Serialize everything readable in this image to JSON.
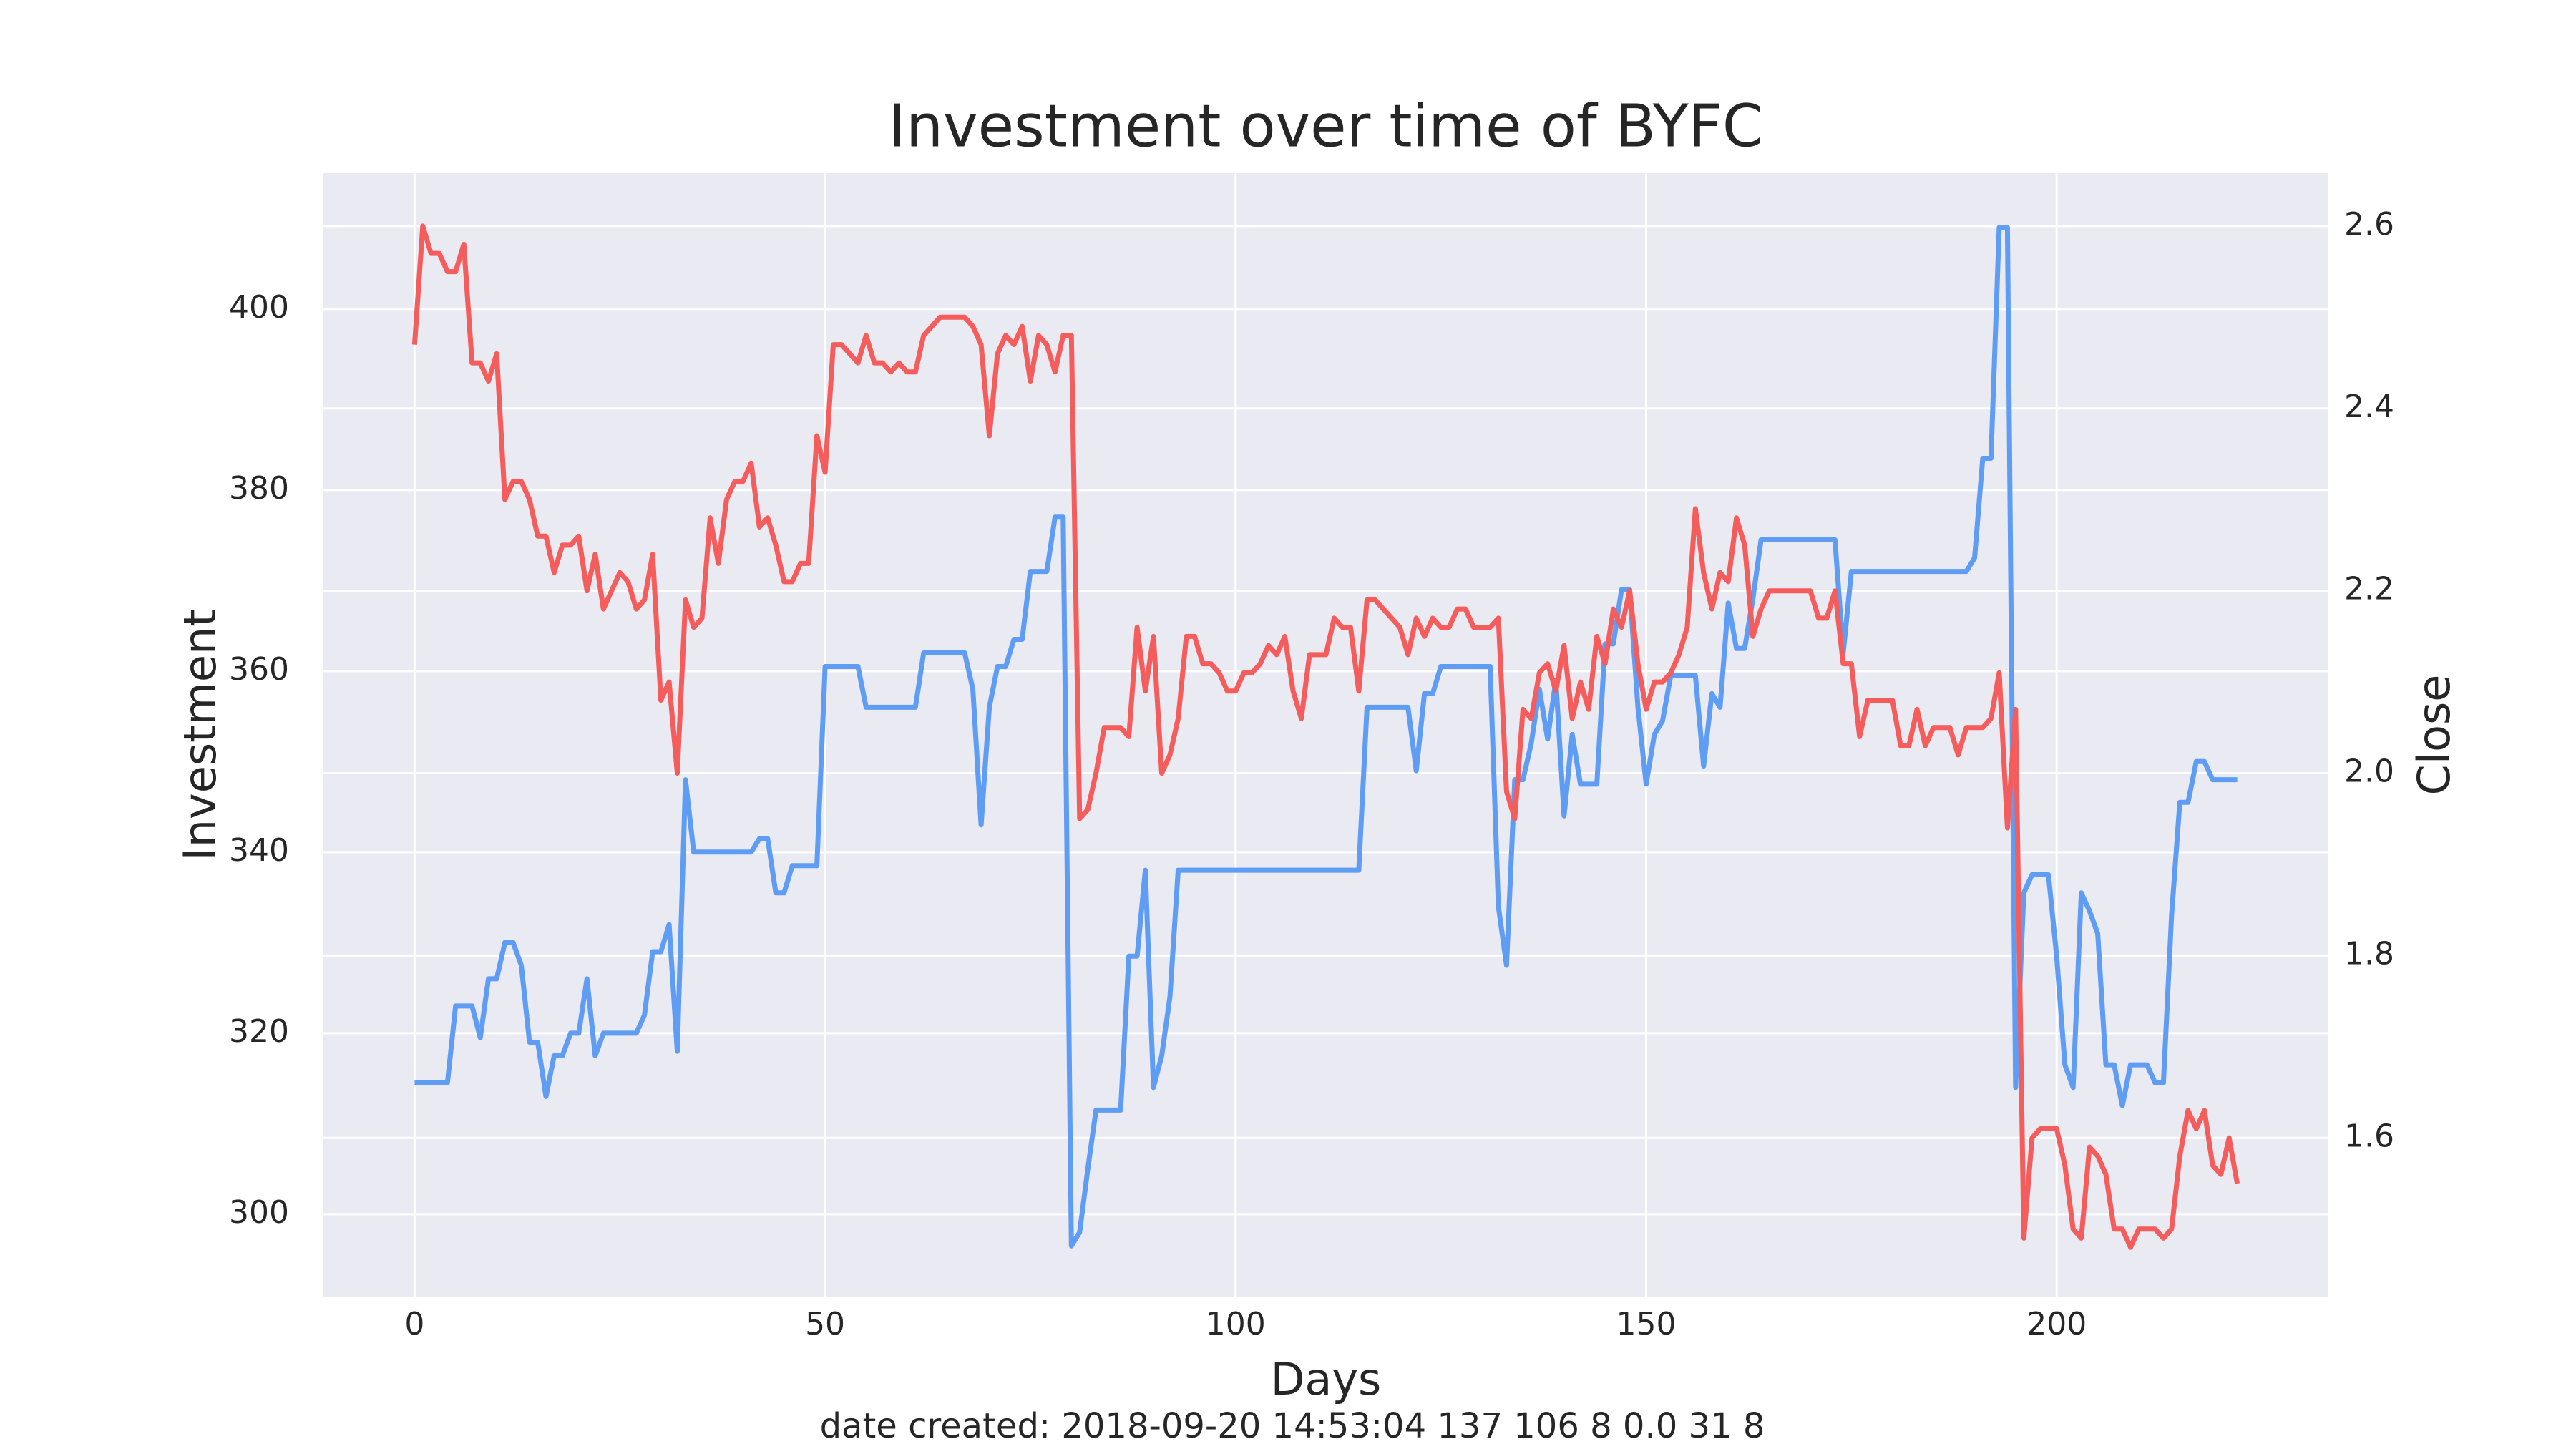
{
  "chart_data": {
    "type": "line",
    "title": "Investment over time of BYFC",
    "xlabel": "Days",
    "ylabel": "Investment",
    "y2label": "Close",
    "footnote": "date created: 2018-09-20 14:53:04 137 106 8 0.0 31 8",
    "grid": true,
    "xlim": [
      -11.1,
      233.1
    ],
    "ylim": [
      290.9,
      415.0
    ],
    "y2lim": [
      1.426,
      2.658
    ],
    "xticks": [
      0,
      50,
      100,
      150,
      200
    ],
    "yticks": [
      300,
      320,
      340,
      360,
      380,
      400
    ],
    "y2ticks": [
      1.6,
      1.8,
      {
        "value": 2,
        "label": "2.0"
      },
      2.2,
      2.4,
      2.6
    ],
    "x": [
      0,
      1,
      2,
      3,
      4,
      5,
      6,
      7,
      8,
      9,
      10,
      11,
      12,
      13,
      14,
      15,
      16,
      17,
      18,
      19,
      20,
      21,
      22,
      23,
      24,
      25,
      26,
      27,
      28,
      29,
      30,
      31,
      32,
      33,
      34,
      35,
      36,
      37,
      38,
      39,
      40,
      41,
      42,
      43,
      44,
      45,
      46,
      47,
      48,
      49,
      50,
      51,
      52,
      53,
      54,
      55,
      56,
      57,
      58,
      59,
      60,
      61,
      62,
      63,
      64,
      65,
      66,
      67,
      68,
      69,
      70,
      71,
      72,
      73,
      74,
      75,
      76,
      77,
      78,
      79,
      80,
      81,
      82,
      83,
      84,
      85,
      86,
      87,
      88,
      89,
      90,
      91,
      92,
      93,
      94,
      95,
      96,
      97,
      98,
      99,
      100,
      101,
      102,
      103,
      104,
      105,
      106,
      107,
      108,
      109,
      110,
      111,
      112,
      113,
      114,
      115,
      116,
      117,
      118,
      119,
      120,
      121,
      122,
      123,
      124,
      125,
      126,
      127,
      128,
      129,
      130,
      131,
      132,
      133,
      134,
      135,
      136,
      137,
      138,
      139,
      140,
      141,
      142,
      143,
      144,
      145,
      146,
      147,
      148,
      149,
      150,
      151,
      152,
      153,
      154,
      155,
      156,
      157,
      158,
      159,
      160,
      161,
      162,
      163,
      164,
      165,
      166,
      167,
      168,
      169,
      170,
      171,
      172,
      173,
      174,
      175,
      176,
      177,
      178,
      179,
      180,
      181,
      182,
      183,
      184,
      185,
      186,
      187,
      188,
      189,
      190,
      191,
      192,
      193,
      194,
      195,
      196,
      197,
      198,
      199,
      200,
      201,
      202,
      203,
      204,
      205,
      206,
      207,
      208,
      209,
      210,
      211,
      212,
      213,
      214,
      215,
      216,
      217,
      218,
      219,
      220,
      221,
      222
    ],
    "series": [
      {
        "name": "Investment",
        "color": "#5f9cf4",
        "axis": "y",
        "values": [
          314.5,
          314.5,
          314.5,
          314.5,
          314.5,
          323,
          323,
          323,
          319.5,
          326,
          326,
          330,
          330,
          327.5,
          319,
          319,
          313,
          317.5,
          317.5,
          320,
          320,
          326,
          317.5,
          320,
          320,
          320,
          320,
          320,
          322,
          329,
          329,
          332,
          318,
          348,
          340,
          340,
          340,
          340,
          340,
          340,
          340,
          340,
          341.5,
          341.5,
          335.5,
          335.5,
          338.5,
          338.5,
          338.5,
          338.5,
          360.5,
          360.5,
          360.5,
          360.5,
          360.5,
          356,
          356,
          356,
          356,
          356,
          356,
          356,
          362,
          362,
          362,
          362,
          362,
          362,
          358,
          343,
          356,
          360.5,
          360.5,
          363.5,
          363.5,
          371,
          371,
          371,
          377,
          377,
          296.5,
          298,
          305,
          311.5,
          311.5,
          311.5,
          311.5,
          328.5,
          328.5,
          338,
          314,
          317.5,
          324,
          338,
          338,
          338,
          338,
          338,
          338,
          338,
          338,
          338,
          338,
          338,
          338,
          338,
          338,
          338,
          338,
          338,
          338,
          338,
          338,
          338,
          338,
          338,
          356,
          356,
          356,
          356,
          356,
          356,
          349,
          357.5,
          357.5,
          360.5,
          360.5,
          360.5,
          360.5,
          360.5,
          360.5,
          360.5,
          334,
          327.5,
          348,
          348,
          352,
          358,
          352.5,
          359,
          344,
          353,
          347.5,
          347.5,
          347.5,
          363,
          363,
          369,
          369,
          356,
          347.5,
          353,
          354.5,
          359.5,
          359.5,
          359.5,
          359.5,
          349.5,
          357.5,
          356,
          367.5,
          362.5,
          362.5,
          368,
          374.5,
          374.5,
          374.5,
          374.5,
          374.5,
          374.5,
          374.5,
          374.5,
          374.5,
          374.5,
          362,
          371,
          371,
          371,
          371,
          371,
          371,
          371,
          371,
          371,
          371,
          371,
          371,
          371,
          371,
          371,
          372.5,
          383.5,
          383.5,
          409,
          409,
          314,
          335.5,
          337.5,
          337.5,
          337.5,
          328.5,
          316.5,
          314,
          335.5,
          333.5,
          331,
          316.5,
          316.5,
          312,
          316.5,
          316.5,
          316.5,
          314.5,
          314.5,
          333,
          345.5,
          345.5,
          350,
          350,
          348,
          348,
          348,
          348
        ]
      },
      {
        "name": "Close",
        "color": "#f55c5c",
        "axis": "y2",
        "values": [
          2.47,
          2.6,
          2.57,
          2.57,
          2.55,
          2.55,
          2.58,
          2.45,
          2.45,
          2.43,
          2.46,
          2.3,
          2.32,
          2.32,
          2.3,
          2.26,
          2.26,
          2.22,
          2.25,
          2.25,
          2.26,
          2.2,
          2.24,
          2.18,
          2.2,
          2.22,
          2.21,
          2.18,
          2.19,
          2.24,
          2.08,
          2.1,
          2.0,
          2.19,
          2.16,
          2.17,
          2.28,
          2.23,
          2.3,
          2.32,
          2.32,
          2.34,
          2.27,
          2.28,
          2.25,
          2.21,
          2.21,
          2.23,
          2.23,
          2.37,
          2.33,
          2.47,
          2.47,
          2.46,
          2.45,
          2.48,
          2.45,
          2.45,
          2.44,
          2.45,
          2.44,
          2.44,
          2.48,
          2.49,
          2.5,
          2.5,
          2.5,
          2.5,
          2.49,
          2.47,
          2.37,
          2.46,
          2.48,
          2.47,
          2.49,
          2.43,
          2.48,
          2.47,
          2.44,
          2.48,
          2.48,
          1.95,
          1.96,
          2.0,
          2.05,
          2.05,
          2.05,
          2.04,
          2.16,
          2.09,
          2.15,
          2.0,
          2.02,
          2.06,
          2.15,
          2.15,
          2.12,
          2.12,
          2.11,
          2.09,
          2.09,
          2.11,
          2.11,
          2.12,
          2.14,
          2.13,
          2.15,
          2.09,
          2.06,
          2.13,
          2.13,
          2.13,
          2.17,
          2.16,
          2.16,
          2.09,
          2.19,
          2.19,
          2.18,
          2.17,
          2.16,
          2.13,
          2.17,
          2.15,
          2.17,
          2.16,
          2.16,
          2.18,
          2.18,
          2.16,
          2.16,
          2.16,
          2.17,
          1.98,
          1.95,
          2.07,
          2.06,
          2.11,
          2.12,
          2.09,
          2.14,
          2.06,
          2.1,
          2.07,
          2.15,
          2.12,
          2.18,
          2.16,
          2.2,
          2.12,
          2.07,
          2.1,
          2.1,
          2.11,
          2.13,
          2.16,
          2.29,
          2.22,
          2.18,
          2.22,
          2.21,
          2.28,
          2.25,
          2.15,
          2.18,
          2.2,
          2.2,
          2.2,
          2.2,
          2.2,
          2.2,
          2.17,
          2.17,
          2.2,
          2.12,
          2.12,
          2.04,
          2.08,
          2.08,
          2.08,
          2.08,
          2.03,
          2.03,
          2.07,
          2.03,
          2.05,
          2.05,
          2.05,
          2.02,
          2.05,
          2.05,
          2.05,
          2.06,
          2.11,
          1.94,
          2.07,
          1.49,
          1.6,
          1.61,
          1.61,
          1.61,
          1.57,
          1.5,
          1.49,
          1.59,
          1.58,
          1.56,
          1.5,
          1.5,
          1.48,
          1.5,
          1.5,
          1.5,
          1.49,
          1.5,
          1.58,
          1.63,
          1.61,
          1.63,
          1.57,
          1.56,
          1.6,
          1.55
        ]
      }
    ]
  }
}
